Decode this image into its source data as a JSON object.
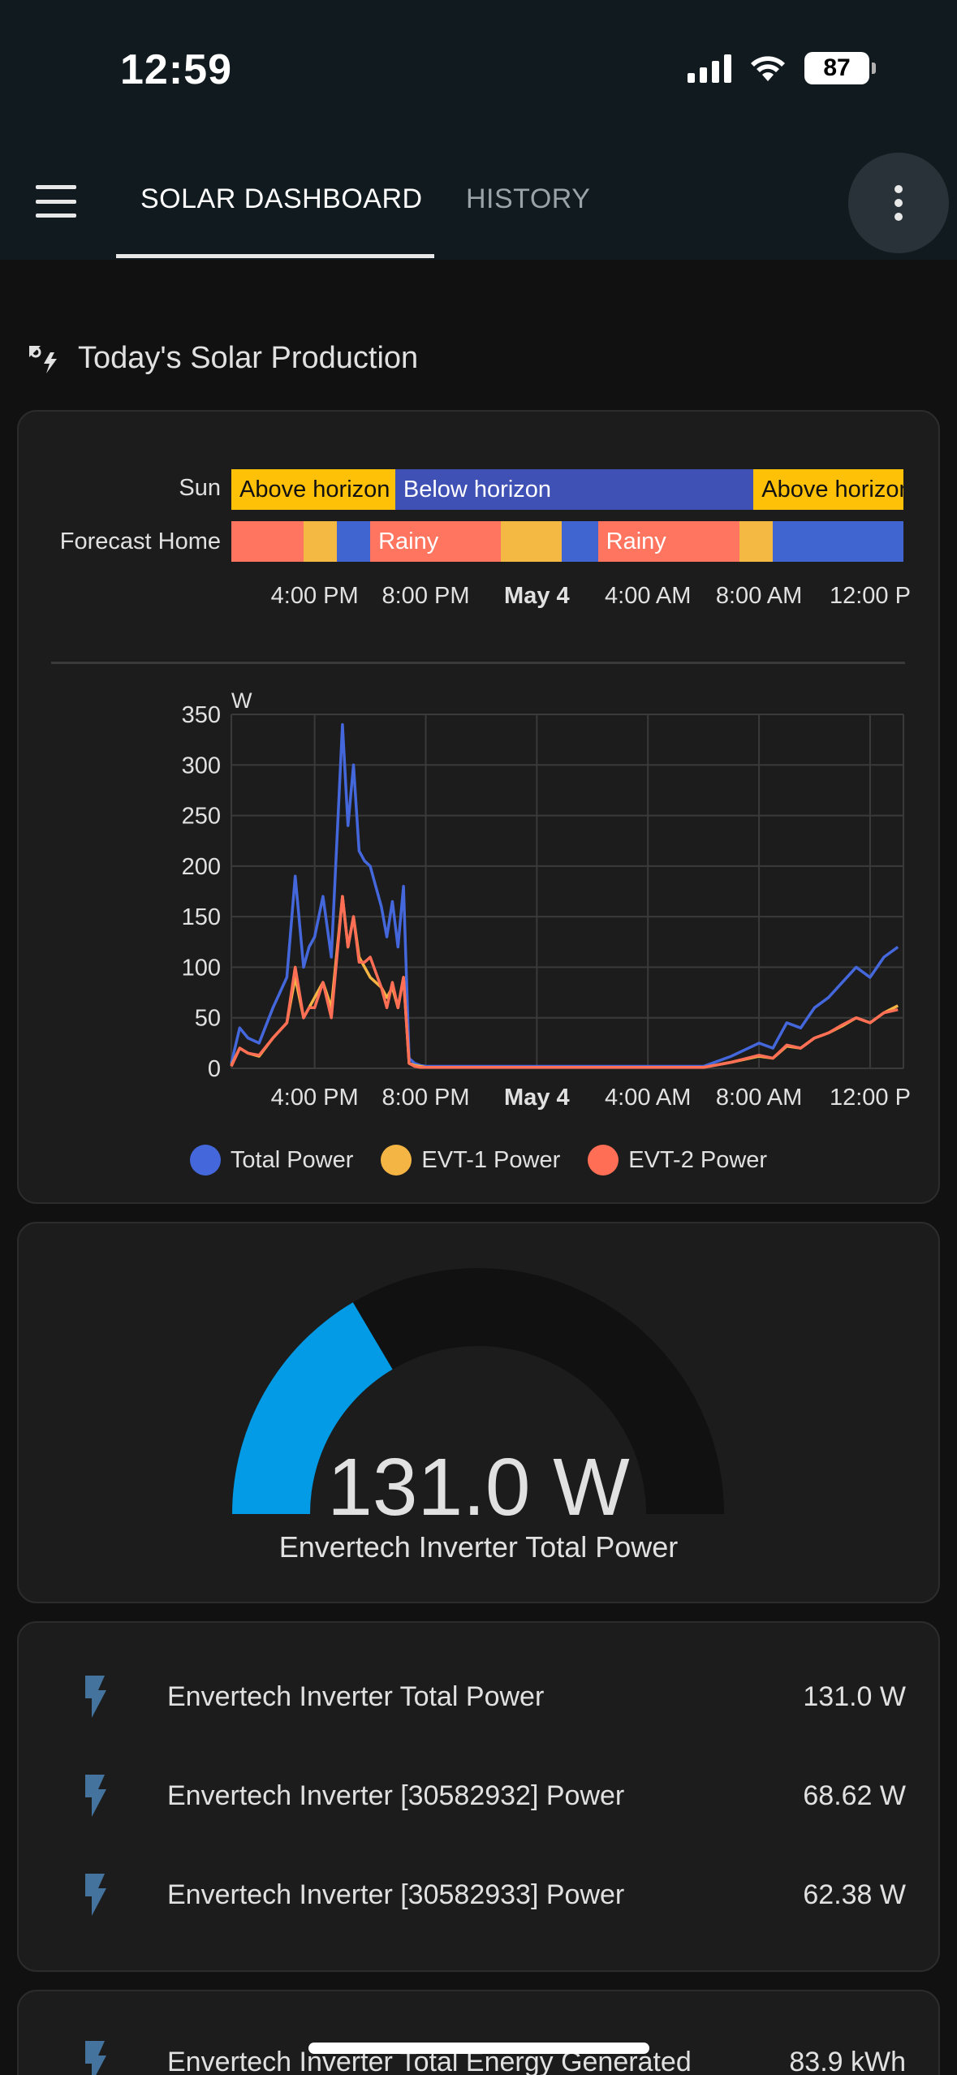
{
  "status": {
    "time": "12:59",
    "battery": "87"
  },
  "header": {
    "tabs": [
      "SOLAR DASHBOARD",
      "HISTORY"
    ]
  },
  "section": {
    "title": "Today's Solar Production"
  },
  "timeline": {
    "rows": [
      {
        "label": "Sun",
        "segments": [
          {
            "text": "Above horizon",
            "state": "above"
          },
          {
            "text": "Below horizon",
            "state": "below"
          },
          {
            "text": "Above horizon",
            "state": "above"
          }
        ]
      },
      {
        "label": "Forecast Home",
        "segments": [
          {
            "text": "",
            "state": "rainy"
          },
          {
            "text": "",
            "state": "partly"
          },
          {
            "text": "",
            "state": "clear"
          },
          {
            "text": "Rainy",
            "state": "rainy"
          },
          {
            "text": "",
            "state": "partly"
          },
          {
            "text": "",
            "state": "clear"
          },
          {
            "text": "Rainy",
            "state": "rainy"
          },
          {
            "text": "",
            "state": "partly"
          },
          {
            "text": "",
            "state": "clear"
          }
        ]
      }
    ],
    "ticks": [
      "4:00 PM",
      "8:00 PM",
      "May 4",
      "4:00 AM",
      "8:00 AM",
      "12:00 P"
    ],
    "colors": {
      "above": "#ffc107",
      "below": "#3f51b5",
      "rainy": "#ff7560",
      "partly": "#f4b942",
      "clear": "#4064d0"
    }
  },
  "chart_data": {
    "type": "line",
    "ylabel": "W",
    "ylim": [
      0,
      350
    ],
    "yticks": [
      0,
      50,
      100,
      150,
      200,
      250,
      300,
      350
    ],
    "xticks": [
      "4:00 PM",
      "8:00 PM",
      "May 4",
      "4:00 AM",
      "8:00 AM",
      "12:00 P"
    ],
    "x_hours": [
      13,
      13.3,
      13.6,
      14,
      14.5,
      15,
      15.3,
      15.6,
      15.8,
      16,
      16.3,
      16.6,
      17,
      17.2,
      17.4,
      17.6,
      17.8,
      18,
      18.2,
      18.4,
      18.6,
      18.8,
      19,
      19.2,
      19.4,
      19.6,
      19.8,
      20,
      20.5,
      22,
      24,
      28,
      30,
      31,
      32,
      32.5,
      33,
      33.5,
      34,
      34.5,
      35,
      35.5,
      36,
      36.5,
      37
    ],
    "series": [
      {
        "name": "Total Power",
        "color": "#4468dc",
        "values": [
          5,
          40,
          30,
          25,
          60,
          90,
          190,
          100,
          120,
          130,
          170,
          110,
          340,
          240,
          300,
          215,
          205,
          200,
          180,
          160,
          130,
          165,
          120,
          180,
          10,
          5,
          3,
          2,
          2,
          2,
          2,
          2,
          2,
          12,
          25,
          20,
          45,
          40,
          60,
          70,
          85,
          100,
          90,
          110,
          120
        ]
      },
      {
        "name": "EVT-1 Power",
        "color": "#f5b544",
        "values": [
          3,
          20,
          15,
          12,
          30,
          45,
          90,
          50,
          60,
          70,
          85,
          60,
          170,
          120,
          150,
          110,
          100,
          90,
          85,
          80,
          70,
          80,
          60,
          90,
          5,
          3,
          2,
          1,
          1,
          1,
          1,
          1,
          1,
          6,
          12,
          10,
          22,
          20,
          30,
          35,
          42,
          50,
          45,
          55,
          62
        ]
      },
      {
        "name": "EVT-2 Power",
        "color": "#ff6e55",
        "values": [
          2,
          20,
          15,
          13,
          30,
          45,
          100,
          50,
          60,
          60,
          85,
          50,
          170,
          120,
          150,
          105,
          105,
          110,
          95,
          80,
          60,
          85,
          60,
          90,
          5,
          2,
          1,
          1,
          1,
          1,
          1,
          1,
          1,
          6,
          13,
          10,
          23,
          20,
          30,
          35,
          43,
          50,
          45,
          55,
          58
        ]
      }
    ]
  },
  "gauge": {
    "value": "131.0 W",
    "name": "Envertech Inverter Total Power",
    "fraction": 0.33,
    "color": "#039be5"
  },
  "entities": [
    {
      "name": "Envertech Inverter Total Power",
      "value": "131.0 W"
    },
    {
      "name": "Envertech Inverter [30582932] Power",
      "value": "68.62 W"
    },
    {
      "name": "Envertech Inverter [30582933] Power",
      "value": "62.38 W"
    }
  ],
  "entities2": [
    {
      "name": "Envertech Inverter Total Energy Generated",
      "value": "83.9 kWh"
    }
  ]
}
